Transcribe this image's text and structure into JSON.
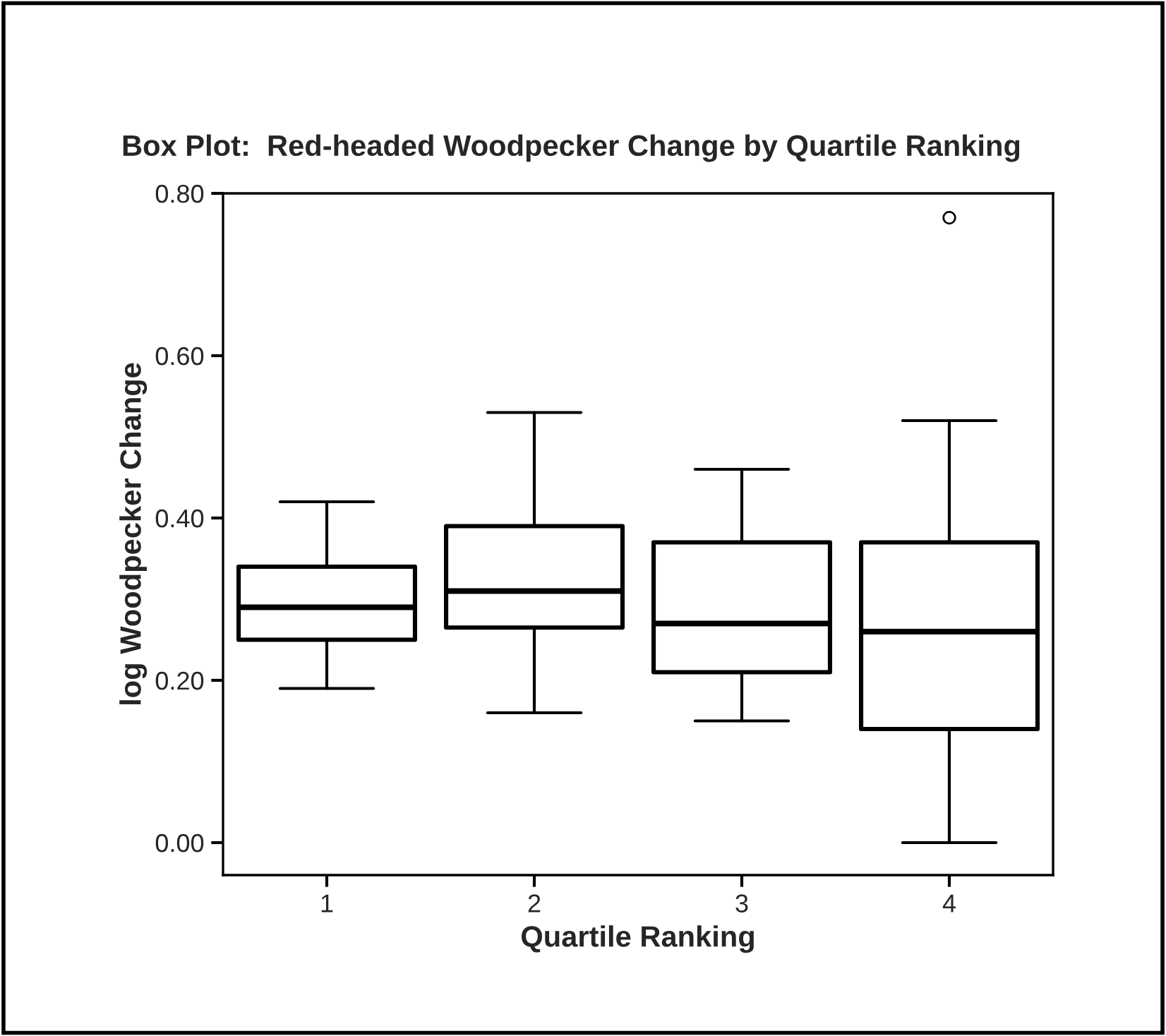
{
  "chart_data": {
    "type": "box",
    "title": "Box Plot:  Red-headed Woodpecker Change by Quartile Ranking",
    "xlabel": "Quartile Ranking",
    "ylabel": "log Woodpecker Change",
    "categories": [
      "1",
      "2",
      "3",
      "4"
    ],
    "boxes": [
      {
        "low": 0.19,
        "q1": 0.25,
        "median": 0.29,
        "q3": 0.34,
        "high": 0.42
      },
      {
        "low": 0.16,
        "q1": 0.265,
        "median": 0.31,
        "q3": 0.39,
        "high": 0.53
      },
      {
        "low": 0.15,
        "q1": 0.21,
        "median": 0.27,
        "q3": 0.37,
        "high": 0.46
      },
      {
        "low": 0.0,
        "q1": 0.14,
        "median": 0.26,
        "q3": 0.37,
        "high": 0.52,
        "outliers": [
          0.77
        ]
      }
    ],
    "ylim": [
      -0.04,
      0.8
    ],
    "yticks": [
      {
        "value": 0,
        "label": "0.00"
      },
      {
        "value": 0.2,
        "label": "0.20"
      },
      {
        "value": 0.4,
        "label": "0.40"
      },
      {
        "value": 0.6,
        "label": "0.60"
      },
      {
        "value": 0.8,
        "label": "0.80"
      }
    ],
    "grid": false,
    "legend": false
  }
}
